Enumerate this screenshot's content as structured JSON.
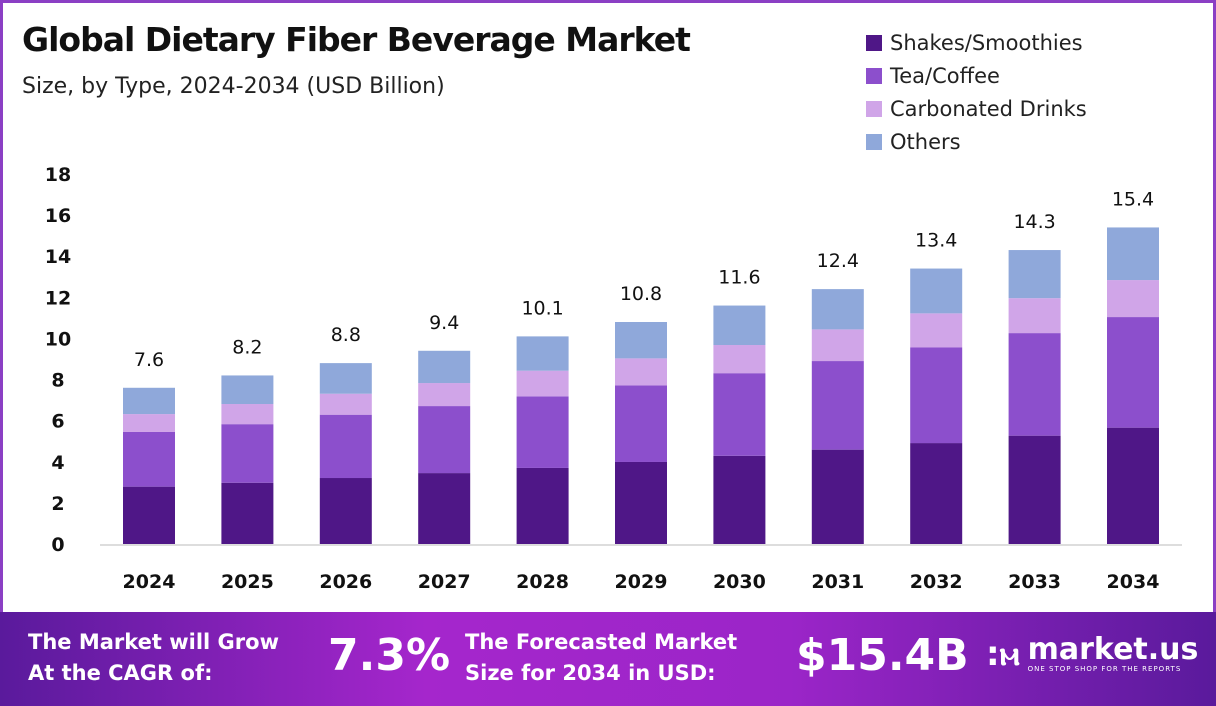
{
  "header": {
    "title": "Global Dietary Fiber Beverage Market",
    "subtitle": "Size, by Type, 2024-2034 (USD Billion)"
  },
  "chart_data": {
    "type": "bar",
    "stacked": true,
    "title": "Global Dietary Fiber Beverage Market",
    "subtitle": "Size, by Type, 2024-2034 (USD Billion)",
    "categories": [
      "2024",
      "2025",
      "2026",
      "2027",
      "2028",
      "2029",
      "2030",
      "2031",
      "2032",
      "2033",
      "2034"
    ],
    "series": [
      {
        "name": "Shakes/Smoothies",
        "color": "#4f1787",
        "values": [
          2.79,
          2.98,
          3.21,
          3.45,
          3.7,
          3.99,
          4.29,
          4.59,
          4.91,
          5.27,
          5.66
        ]
      },
      {
        "name": "Tea/Coffee",
        "color": "#8c4fcc",
        "values": [
          2.66,
          2.85,
          3.08,
          3.26,
          3.48,
          3.72,
          4.02,
          4.31,
          4.65,
          4.99,
          5.38
        ]
      },
      {
        "name": "Carbonated Drinks",
        "color": "#d0a5e8",
        "values": [
          0.87,
          0.98,
          1.02,
          1.12,
          1.25,
          1.32,
          1.37,
          1.54,
          1.66,
          1.7,
          1.8
        ]
      },
      {
        "name": "Others",
        "color": "#8fa8da",
        "values": [
          1.28,
          1.39,
          1.49,
          1.57,
          1.67,
          1.77,
          1.92,
          1.96,
          2.18,
          2.34,
          2.56
        ]
      }
    ],
    "totals": [
      "7.6",
      "8.2",
      "8.8",
      "9.4",
      "10.1",
      "10.8",
      "11.6",
      "12.4",
      "13.4",
      "14.3",
      "15.4"
    ],
    "yticks": [
      "0",
      "2",
      "4",
      "6",
      "8",
      "10",
      "12",
      "14",
      "16",
      "18"
    ],
    "ylim": [
      0,
      18
    ],
    "grid": false,
    "legend_position": "top-right"
  },
  "banner": {
    "cagr_label_1": "The Market will Grow",
    "cagr_label_2": "At the CAGR of:",
    "cagr_value": "7.3%",
    "forecast_label_1": "The Forecasted Market",
    "forecast_label_2": "Size for 2034 in USD:",
    "forecast_value": "$15.4B",
    "logo_name": "market.us",
    "logo_tagline": "ONE STOP SHOP FOR THE REPORTS"
  }
}
